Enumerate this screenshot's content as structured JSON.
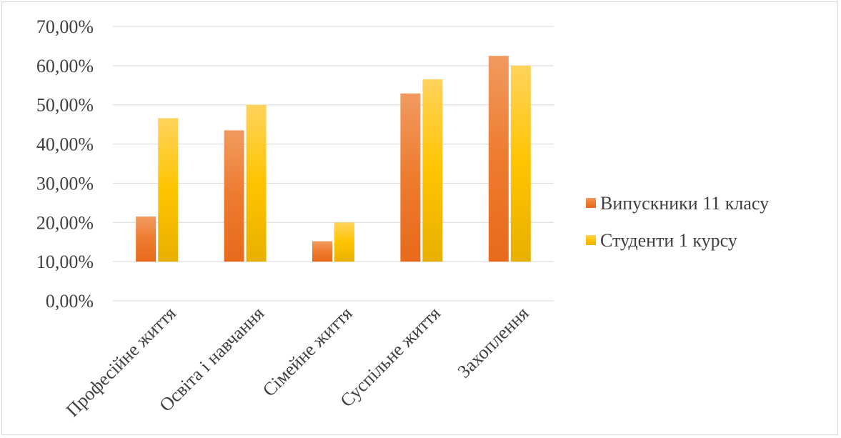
{
  "chart_data": {
    "type": "bar",
    "categories": [
      "Професійне життя",
      "Освіта і навчання",
      "Сімейне життя",
      "Суспільне життя",
      "Захоплення"
    ],
    "series": [
      {
        "name": "Випускники 11 класу",
        "values": [
          21.5,
          43.5,
          15.2,
          52.9,
          62.5
        ],
        "color": "#ed7d31"
      },
      {
        "name": "Студенти 1 курсу",
        "values": [
          46.6,
          50.0,
          20.0,
          56.5,
          60.0
        ],
        "color": "#ffc000"
      }
    ],
    "yticks": [
      "0,00%",
      "10,00%",
      "20,00%",
      "30,00%",
      "40,00%",
      "50,00%",
      "60,00%",
      "70,00%"
    ],
    "ylim": [
      0,
      70
    ],
    "bar_baseline": 10,
    "grid": true,
    "legend_position": "right"
  }
}
